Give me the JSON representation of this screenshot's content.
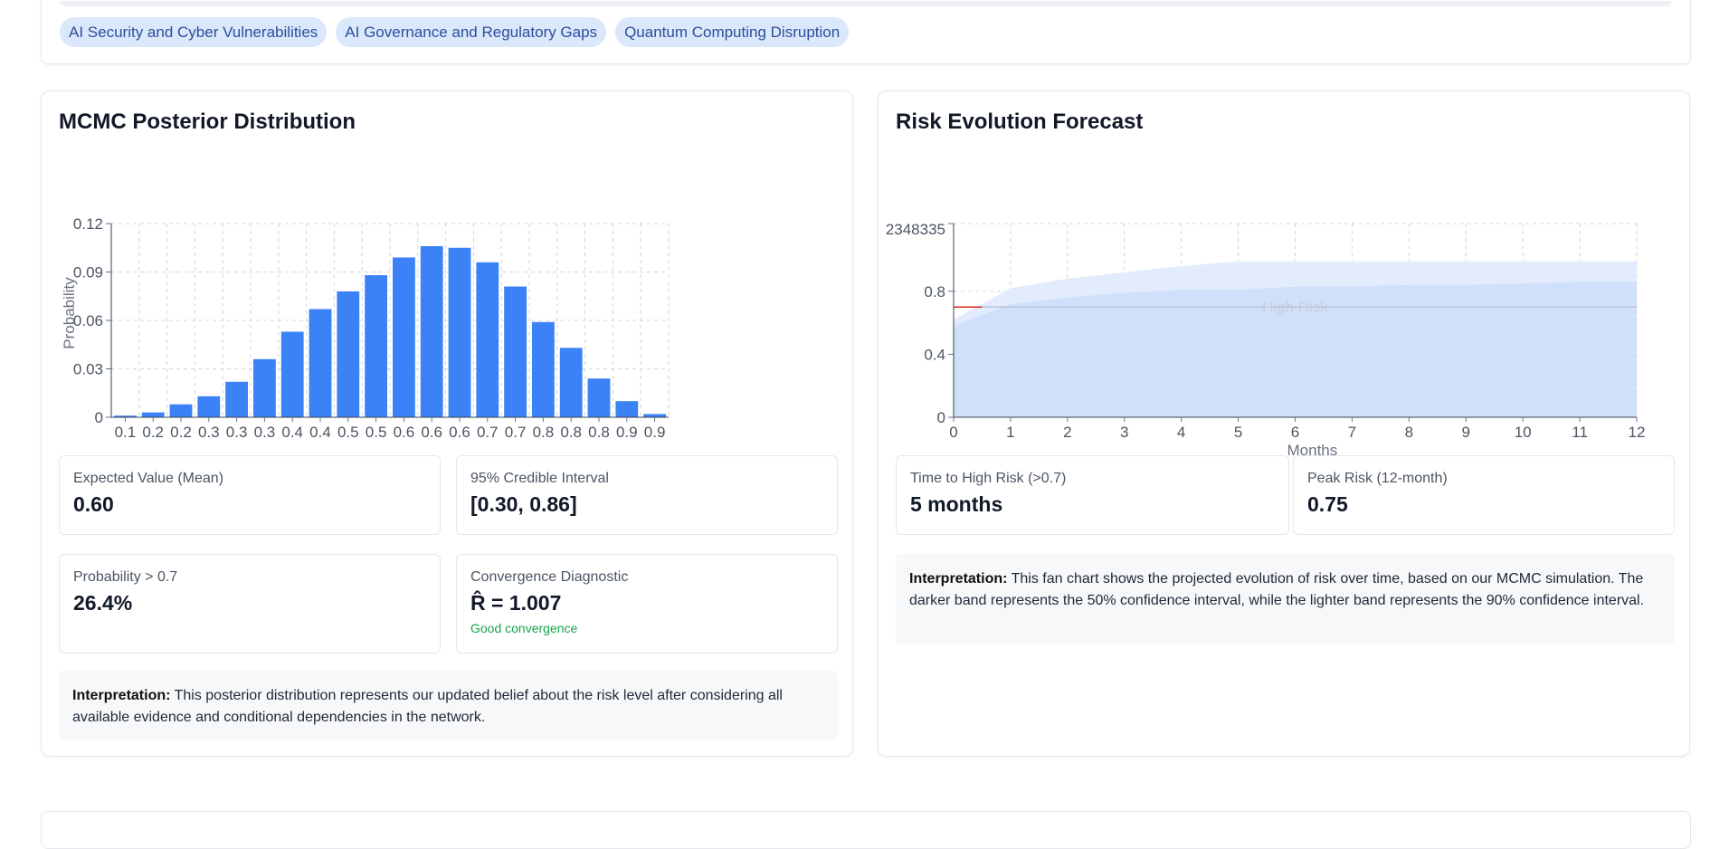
{
  "risk_tags": [
    "AI Security and Cyber Vulnerabilities",
    "AI Governance and Regulatory Gaps",
    "Quantum Computing Disruption"
  ],
  "posterior": {
    "title": "MCMC Posterior Distribution",
    "stats": {
      "mean_label": "Expected Value (Mean)",
      "mean_value": "0.60",
      "ci_label": "95% Credible Interval",
      "ci_value": "[0.30, 0.86]",
      "prob_label": "Probability > 0.7",
      "prob_value": "26.4%",
      "conv_label": "Convergence Diagnostic",
      "conv_value": "R̂ = 1.007",
      "conv_note": "Good convergence"
    },
    "interpretation_label": "Interpretation:",
    "interpretation_text": " This posterior distribution represents our updated belief about the risk level after considering all available evidence and conditional dependencies in the network."
  },
  "forecast": {
    "title": "Risk Evolution Forecast",
    "stats": {
      "time_label": "Time to High Risk (>0.7)",
      "time_value": "5 months",
      "peak_label": "Peak Risk (12-month)",
      "peak_value": "0.75"
    },
    "interpretation_label": "Interpretation:",
    "interpretation_text": " This fan chart shows the projected evolution of risk over time, based on our MCMC simulation. The darker band represents the 50% confidence interval, while the lighter band represents the 90% confidence interval."
  },
  "chart_data": [
    {
      "type": "bar",
      "title": "",
      "xlabel": "",
      "ylabel": "Probability",
      "categories": [
        "0.1",
        "0.2",
        "0.2",
        "0.3",
        "0.3",
        "0.3",
        "0.4",
        "0.4",
        "0.5",
        "0.5",
        "0.6",
        "0.6",
        "0.6",
        "0.7",
        "0.7",
        "0.8",
        "0.8",
        "0.8",
        "0.9",
        "0.9"
      ],
      "values": [
        0.001,
        0.003,
        0.008,
        0.013,
        0.022,
        0.036,
        0.053,
        0.067,
        0.078,
        0.088,
        0.099,
        0.106,
        0.105,
        0.096,
        0.081,
        0.059,
        0.043,
        0.024,
        0.01,
        0.002
      ],
      "ylim": [
        0,
        0.12
      ],
      "yticks": [
        0,
        0.03,
        0.06,
        0.09,
        0.12
      ],
      "ytick_labels": [
        "0",
        "0.03",
        "0.06",
        "0.09",
        "0.12"
      ],
      "grid": true,
      "color": "#3b82f6"
    },
    {
      "type": "area",
      "title": "",
      "xlabel": "Months",
      "ylabel": "",
      "x": [
        0,
        1,
        2,
        3,
        4,
        5,
        6,
        7,
        8,
        9,
        10,
        11,
        12
      ],
      "xlim": [
        0,
        12
      ],
      "ylim": [
        0,
        1.23
      ],
      "yticks": [
        0,
        0.4,
        0.8
      ],
      "ytick_labels": [
        "0",
        "0.4",
        "0.8"
      ],
      "top_tick_label": "2348335",
      "grid": true,
      "series": [
        {
          "band": "90%",
          "upper": [
            0.62,
            0.82,
            0.88,
            0.92,
            0.96,
            0.99,
            0.99,
            0.99,
            0.99,
            0.99,
            0.99,
            0.99,
            0.99
          ],
          "lower": [
            0,
            0,
            0,
            0,
            0,
            0,
            0,
            0,
            0,
            0,
            0,
            0,
            0
          ],
          "color": "#e3ecfd"
        },
        {
          "band": "50%",
          "upper": [
            0.58,
            0.72,
            0.76,
            0.79,
            0.81,
            0.81,
            0.83,
            0.83,
            0.84,
            0.84,
            0.85,
            0.86,
            0.86
          ],
          "lower": [
            0,
            0,
            0,
            0,
            0,
            0,
            0,
            0,
            0,
            0,
            0,
            0,
            0
          ],
          "color": "#d0e0fa"
        }
      ],
      "threshold": {
        "y": 0.7,
        "label": "High Risk"
      },
      "current_marker": {
        "x_end": 0.5,
        "y": 0.7,
        "color": "#dc2626"
      }
    }
  ]
}
